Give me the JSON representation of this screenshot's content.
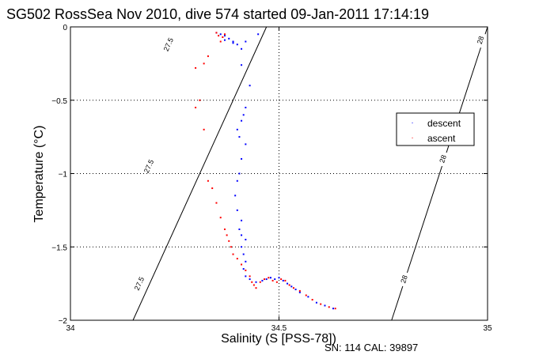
{
  "chart_data": {
    "type": "scatter",
    "title": "SG502 RossSea Nov 2010, dive 574 started 09-Jan-2011 17:14:19",
    "xlabel": "Salinity (S [PSS-78])",
    "ylabel": "Temperature (°C)",
    "footer": "SN: 114  CAL: 39897",
    "xlim": [
      34,
      35
    ],
    "ylim": [
      -2,
      0
    ],
    "xticks": [
      "34",
      "34.5",
      "35"
    ],
    "yticks": [
      "0",
      "-0.5",
      "-1",
      "-1.5",
      "-2"
    ],
    "grid": true,
    "legend_position": "right",
    "isopycnals": [
      {
        "label": "27.5",
        "points": [
          [
            34.47,
            0
          ],
          [
            34.15,
            -2
          ]
        ]
      },
      {
        "label": "28",
        "points": [
          [
            35.0,
            0
          ],
          [
            34.77,
            -2
          ]
        ]
      }
    ],
    "isopycnal_label_positions": [
      {
        "label": "27.5",
        "x": 34.235,
        "y": -0.12
      },
      {
        "label": "27.5",
        "x": 34.188,
        "y": -0.95
      },
      {
        "label": "27.5",
        "x": 34.165,
        "y": -1.75
      },
      {
        "label": "28",
        "x": 34.983,
        "y": -0.09
      },
      {
        "label": "28",
        "x": 34.893,
        "y": -0.9
      },
      {
        "label": "28",
        "x": 34.8,
        "y": -1.72
      }
    ],
    "series": [
      {
        "name": "descent",
        "color": "#0000ff",
        "points": [
          [
            34.35,
            -0.04
          ],
          [
            34.36,
            -0.05
          ],
          [
            34.37,
            -0.06
          ],
          [
            34.38,
            -0.08
          ],
          [
            34.39,
            -0.1
          ],
          [
            34.4,
            -0.12
          ],
          [
            34.41,
            -0.15
          ],
          [
            34.37,
            -0.09
          ],
          [
            34.39,
            -0.11
          ],
          [
            34.42,
            -0.1
          ],
          [
            34.45,
            -0.05
          ],
          [
            34.41,
            -0.26
          ],
          [
            34.43,
            -0.4
          ],
          [
            34.42,
            -0.55
          ],
          [
            34.415,
            -0.6
          ],
          [
            34.41,
            -0.64
          ],
          [
            34.4,
            -0.7
          ],
          [
            34.405,
            -0.75
          ],
          [
            34.42,
            -0.8
          ],
          [
            34.41,
            -0.9
          ],
          [
            34.405,
            -1.0
          ],
          [
            34.4,
            -1.05
          ],
          [
            34.395,
            -1.15
          ],
          [
            34.4,
            -1.25
          ],
          [
            34.41,
            -1.32
          ],
          [
            34.405,
            -1.38
          ],
          [
            34.41,
            -1.42
          ],
          [
            34.42,
            -1.45
          ],
          [
            34.41,
            -1.5
          ],
          [
            34.415,
            -1.55
          ],
          [
            34.42,
            -1.6
          ],
          [
            34.415,
            -1.65
          ],
          [
            34.42,
            -1.7
          ],
          [
            34.43,
            -1.72
          ],
          [
            34.445,
            -1.74
          ],
          [
            34.46,
            -1.73
          ],
          [
            34.47,
            -1.72
          ],
          [
            34.48,
            -1.71
          ],
          [
            34.49,
            -1.72
          ],
          [
            34.5,
            -1.71
          ],
          [
            34.51,
            -1.73
          ],
          [
            34.52,
            -1.75
          ],
          [
            34.53,
            -1.77
          ],
          [
            34.54,
            -1.79
          ],
          [
            34.55,
            -1.81
          ],
          [
            34.57,
            -1.84
          ],
          [
            34.59,
            -1.88
          ],
          [
            34.61,
            -1.9
          ],
          [
            34.63,
            -1.92
          ]
        ]
      },
      {
        "name": "ascent",
        "color": "#ff0000",
        "points": [
          [
            34.35,
            -0.04
          ],
          [
            34.355,
            -0.06
          ],
          [
            34.365,
            -0.07
          ],
          [
            34.37,
            -0.05
          ],
          [
            34.36,
            -0.1
          ],
          [
            34.33,
            -0.2
          ],
          [
            34.3,
            -0.28
          ],
          [
            34.32,
            -0.25
          ],
          [
            34.31,
            -0.5
          ],
          [
            34.3,
            -0.55
          ],
          [
            34.32,
            -0.7
          ],
          [
            34.33,
            -1.05
          ],
          [
            34.34,
            -1.1
          ],
          [
            34.35,
            -1.2
          ],
          [
            34.36,
            -1.3
          ],
          [
            34.37,
            -1.38
          ],
          [
            34.375,
            -1.42
          ],
          [
            34.38,
            -1.46
          ],
          [
            34.385,
            -1.5
          ],
          [
            34.39,
            -1.55
          ],
          [
            34.4,
            -1.58
          ],
          [
            34.41,
            -1.62
          ],
          [
            34.42,
            -1.66
          ],
          [
            34.43,
            -1.7
          ],
          [
            34.435,
            -1.74
          ],
          [
            34.44,
            -1.76
          ],
          [
            34.445,
            -1.78
          ],
          [
            34.455,
            -1.74
          ],
          [
            34.465,
            -1.72
          ],
          [
            34.475,
            -1.71
          ],
          [
            34.485,
            -1.73
          ],
          [
            34.495,
            -1.74
          ],
          [
            34.505,
            -1.72
          ],
          [
            34.515,
            -1.73
          ],
          [
            34.525,
            -1.76
          ],
          [
            34.535,
            -1.78
          ],
          [
            34.55,
            -1.8
          ],
          [
            34.565,
            -1.83
          ],
          [
            34.58,
            -1.86
          ],
          [
            34.6,
            -1.89
          ],
          [
            34.62,
            -1.91
          ],
          [
            34.635,
            -1.92
          ]
        ]
      }
    ]
  }
}
